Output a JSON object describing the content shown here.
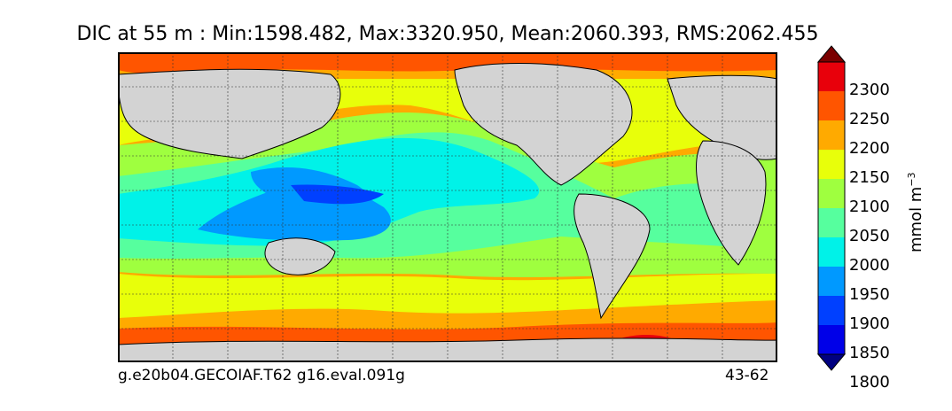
{
  "title": "DIC at 55 m : Min:1598.482, Max:3320.950, Mean:2060.393, RMS:2062.455",
  "footer": {
    "case_name": "g.e20b04.GECOIAF.T62 g16.eval.091g",
    "year_range": "43-62"
  },
  "colorbar": {
    "label": "mmol m",
    "label_exponent": "−3",
    "ticks": [
      "2300",
      "2250",
      "2200",
      "2150",
      "2100",
      "2050",
      "2000",
      "1950",
      "1900",
      "1850",
      "1800"
    ],
    "colors_top_to_bottom": [
      "#7a0000",
      "#e8000b",
      "#ff5500",
      "#ffaa00",
      "#e8ff0a",
      "#9fff3f",
      "#56ff9e",
      "#00f2e8",
      "#0099ff",
      "#0040ff",
      "#0000e8",
      "#000080"
    ]
  },
  "map": {
    "land_color": "#d3d3d3",
    "region_colors": {
      "c2300": "#7a0000",
      "c2250": "#e8000b",
      "c2200": "#ff5500",
      "c2150": "#ffaa00",
      "c2100": "#e8ff0a",
      "c2050": "#9fff3f",
      "c2000": "#56ff9e",
      "c1950": "#00f2e8",
      "c1900": "#0099ff",
      "c1850": "#0040ff",
      "c1800": "#0000e8"
    }
  }
}
